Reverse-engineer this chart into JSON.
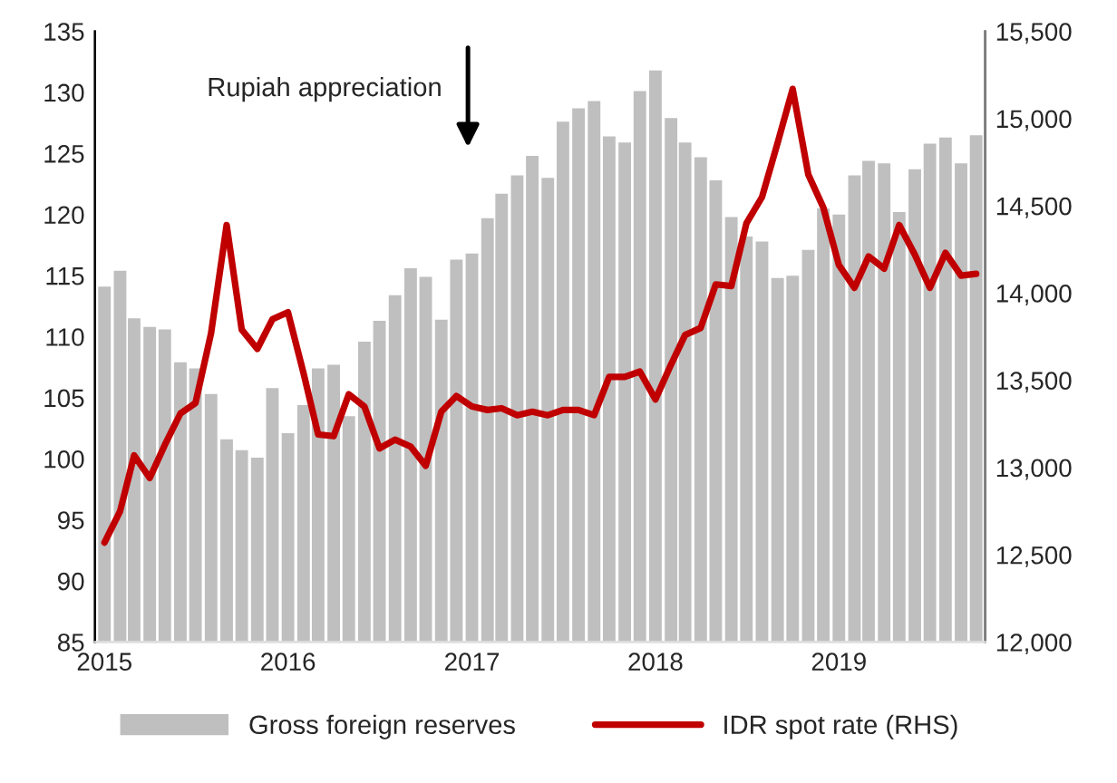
{
  "chart_data": {
    "type": "bar",
    "x": [
      "2015-01",
      "2015-02",
      "2015-03",
      "2015-04",
      "2015-05",
      "2015-06",
      "2015-07",
      "2015-08",
      "2015-09",
      "2015-10",
      "2015-11",
      "2015-12",
      "2016-01",
      "2016-02",
      "2016-03",
      "2016-04",
      "2016-05",
      "2016-06",
      "2016-07",
      "2016-08",
      "2016-09",
      "2016-10",
      "2016-11",
      "2016-12",
      "2017-01",
      "2017-02",
      "2017-03",
      "2017-04",
      "2017-05",
      "2017-06",
      "2017-07",
      "2017-08",
      "2017-09",
      "2017-10",
      "2017-11",
      "2017-12",
      "2018-01",
      "2018-02",
      "2018-03",
      "2018-04",
      "2018-05",
      "2018-06",
      "2018-07",
      "2018-08",
      "2018-09",
      "2018-10",
      "2018-11",
      "2018-12",
      "2019-01",
      "2019-02",
      "2019-03",
      "2019-04",
      "2019-05",
      "2019-06",
      "2019-07",
      "2019-08",
      "2019-09",
      "2019-10"
    ],
    "series": [
      {
        "name": "Gross foreign reserves",
        "color": "#bfbfbf",
        "values": [
          114.1,
          115.4,
          111.5,
          110.8,
          110.6,
          107.9,
          107.4,
          105.3,
          101.6,
          100.7,
          100.1,
          105.8,
          102.1,
          104.4,
          107.4,
          107.7,
          103.5,
          109.6,
          111.3,
          113.4,
          115.6,
          114.9,
          111.4,
          116.3,
          116.8,
          119.7,
          121.7,
          123.2,
          124.8,
          123.0,
          127.6,
          128.7,
          129.3,
          126.4,
          125.9,
          130.1,
          131.8,
          127.9,
          125.9,
          124.7,
          122.8,
          119.8,
          118.2,
          117.8,
          114.8,
          115.0,
          117.1,
          120.5,
          120.0,
          123.2,
          124.4,
          124.2,
          120.2,
          123.7,
          125.8,
          126.3,
          124.2,
          126.5
        ]
      },
      {
        "name": "IDR spot rate (RHS)",
        "type": "line",
        "axis": "y2",
        "color": "#c00000",
        "values": [
          12570,
          12750,
          13070,
          12940,
          13130,
          13310,
          13370,
          13770,
          14390,
          13790,
          13680,
          13850,
          13890,
          13540,
          13190,
          13180,
          13420,
          13350,
          13110,
          13160,
          13120,
          13010,
          13320,
          13410,
          13350,
          13330,
          13340,
          13300,
          13320,
          13300,
          13330,
          13330,
          13300,
          13520,
          13520,
          13550,
          13390,
          13590,
          13760,
          13800,
          14050,
          14040,
          14400,
          14550,
          14860,
          15170,
          14680,
          14490,
          14160,
          14030,
          14210,
          14140,
          14390,
          14220,
          14030,
          14230,
          14100,
          14110
        ]
      }
    ],
    "xlim": [
      "2014-12-13",
      "2019-10-19"
    ],
    "xticks": [
      {
        "value": "2015-01",
        "label": "2015"
      },
      {
        "value": "2016-01",
        "label": "2016"
      },
      {
        "value": "2017-01",
        "label": "2017"
      },
      {
        "value": "2018-01",
        "label": "2018"
      },
      {
        "value": "2019-01",
        "label": "2019"
      }
    ],
    "ylim": [
      85,
      135
    ],
    "yticks": [
      85,
      90,
      95,
      100,
      105,
      110,
      115,
      120,
      125,
      130,
      135
    ],
    "y2lim": [
      12000,
      15500
    ],
    "y2ticks": [
      {
        "value": 12000,
        "label": "12,000"
      },
      {
        "value": 12500,
        "label": "12,500"
      },
      {
        "value": 13000,
        "label": "13,000"
      },
      {
        "value": 13500,
        "label": "13,500"
      },
      {
        "value": 14000,
        "label": "14,000"
      },
      {
        "value": 14500,
        "label": "14,500"
      },
      {
        "value": 15000,
        "label": "15,000"
      },
      {
        "value": 15500,
        "label": "15,500"
      }
    ],
    "annotations": [
      "Rupiah appreciation"
    ],
    "grid": false,
    "legend": "bottom",
    "marker": "none",
    "line_style": "solid"
  }
}
